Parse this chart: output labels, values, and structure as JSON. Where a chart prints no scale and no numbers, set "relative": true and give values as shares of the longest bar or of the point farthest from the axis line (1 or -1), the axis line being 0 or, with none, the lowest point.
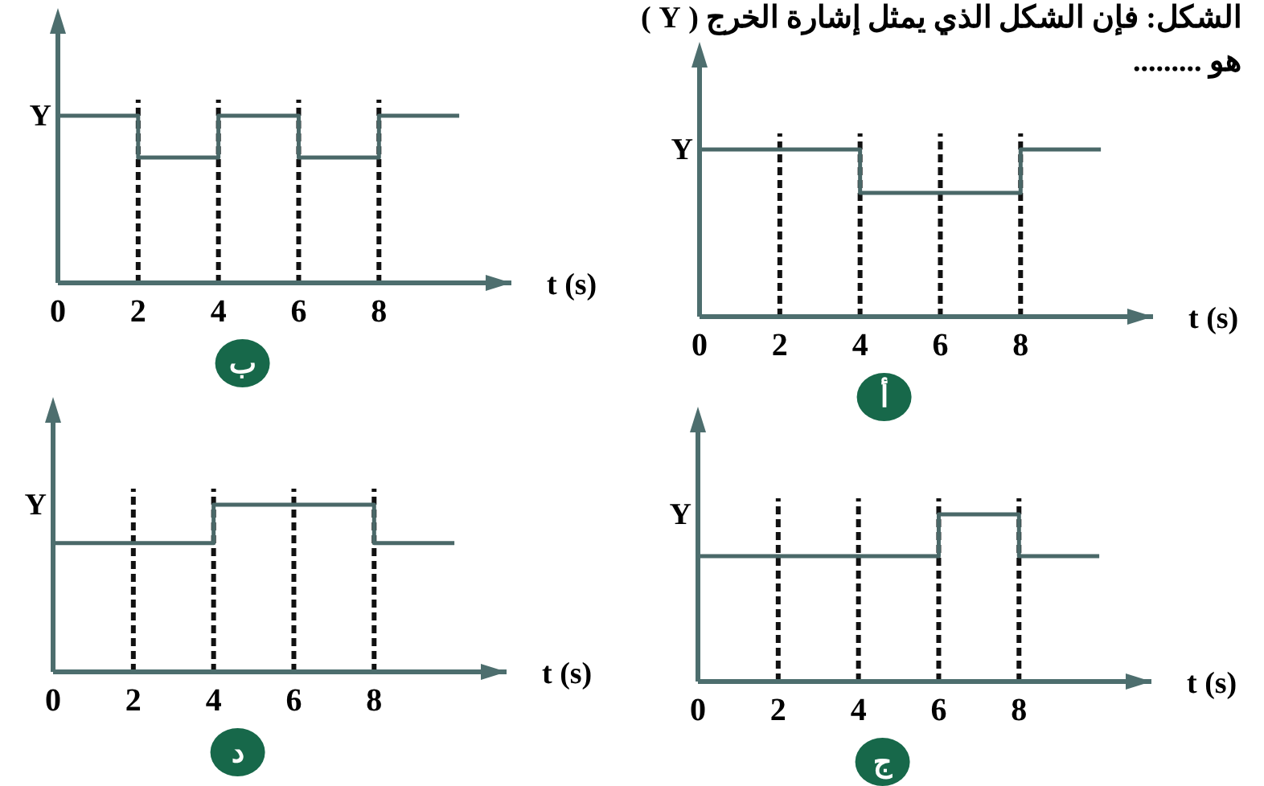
{
  "chart_data": [
    {
      "type": "step",
      "title": "ب",
      "xlabel": "t (s)",
      "ylabel": "Y",
      "relative": true,
      "xlim": [
        0,
        11.3
      ],
      "xticks": [
        0,
        2,
        4,
        6,
        8
      ],
      "x": [
        0,
        2,
        4,
        6,
        8,
        10
      ],
      "series": [
        {
          "color": "#4a6868",
          "values": [
            1,
            0.75,
            1,
            0.75,
            1,
            1
          ]
        }
      ],
      "ref_lines": [
        {
          "axis": "x",
          "value": 2,
          "color": "#111111",
          "line_style": "dashed"
        },
        {
          "axis": "x",
          "value": 4,
          "color": "#111111",
          "line_style": "dashed"
        },
        {
          "axis": "x",
          "value": 6,
          "color": "#111111",
          "line_style": "dashed"
        },
        {
          "axis": "x",
          "value": 8,
          "color": "#111111",
          "line_style": "dashed"
        }
      ]
    },
    {
      "type": "step",
      "title": "أ",
      "xlabel": "t (s)",
      "ylabel": "Y",
      "relative": true,
      "xlim": [
        0,
        11.3
      ],
      "xticks": [
        0,
        2,
        4,
        6,
        8
      ],
      "x": [
        0,
        2,
        4,
        6,
        8,
        10
      ],
      "series": [
        {
          "color": "#4a6868",
          "values": [
            1,
            1,
            0.74,
            0.74,
            1,
            1
          ]
        }
      ],
      "ref_lines": [
        {
          "axis": "x",
          "value": 2,
          "color": "#111111",
          "line_style": "dashed"
        },
        {
          "axis": "x",
          "value": 4,
          "color": "#111111",
          "line_style": "dashed"
        },
        {
          "axis": "x",
          "value": 6,
          "color": "#111111",
          "line_style": "dashed"
        },
        {
          "axis": "x",
          "value": 8,
          "color": "#111111",
          "line_style": "dashed"
        }
      ],
      "annotations": [
        "الشكل: فإن الشكل الذي يمثل إشارة الخرج ( Y )",
        "هو ........."
      ]
    },
    {
      "type": "step",
      "title": "د",
      "xlabel": "t (s)",
      "ylabel": "Y",
      "relative": true,
      "xlim": [
        0,
        11.3
      ],
      "xticks": [
        0,
        2,
        4,
        6,
        8
      ],
      "x": [
        0,
        2,
        4,
        6,
        8,
        10
      ],
      "series": [
        {
          "color": "#4a6868",
          "values": [
            0.77,
            0.77,
            1,
            1,
            0.77,
            0.77
          ]
        }
      ],
      "ref_lines": [
        {
          "axis": "x",
          "value": 2,
          "color": "#111111",
          "line_style": "dashed"
        },
        {
          "axis": "x",
          "value": 4,
          "color": "#111111",
          "line_style": "dashed"
        },
        {
          "axis": "x",
          "value": 6,
          "color": "#111111",
          "line_style": "dashed"
        },
        {
          "axis": "x",
          "value": 8,
          "color": "#111111",
          "line_style": "dashed"
        }
      ]
    },
    {
      "type": "step",
      "title": "ج",
      "xlabel": "t (s)",
      "ylabel": "Y",
      "relative": true,
      "xlim": [
        0,
        11.3
      ],
      "xticks": [
        0,
        2,
        4,
        6,
        8
      ],
      "x": [
        0,
        2,
        4,
        6,
        8,
        10
      ],
      "series": [
        {
          "color": "#4a6868",
          "values": [
            0.75,
            0.75,
            0.75,
            1,
            0.75,
            0.75
          ]
        }
      ],
      "ref_lines": [
        {
          "axis": "x",
          "value": 2,
          "color": "#111111",
          "line_style": "dashed"
        },
        {
          "axis": "x",
          "value": 4,
          "color": "#111111",
          "line_style": "dashed"
        },
        {
          "axis": "x",
          "value": 6,
          "color": "#111111",
          "line_style": "dashed"
        },
        {
          "axis": "x",
          "value": 8,
          "color": "#111111",
          "line_style": "dashed"
        }
      ]
    }
  ]
}
